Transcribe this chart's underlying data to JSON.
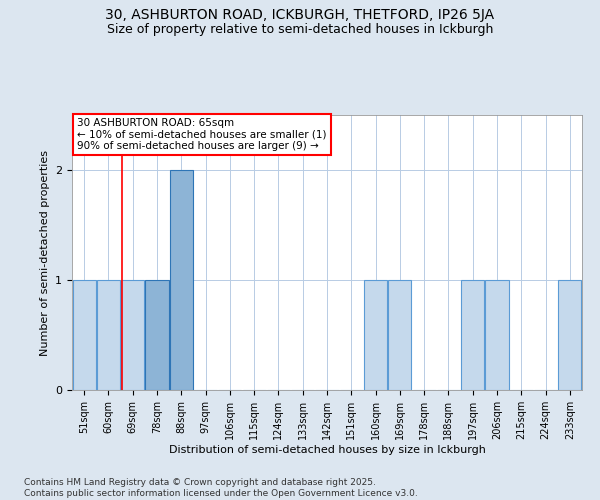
{
  "title1": "30, ASHBURTON ROAD, ICKBURGH, THETFORD, IP26 5JA",
  "title2": "Size of property relative to semi-detached houses in Ickburgh",
  "xlabel": "Distribution of semi-detached houses by size in Ickburgh",
  "ylabel": "Number of semi-detached properties",
  "categories": [
    "51sqm",
    "60sqm",
    "69sqm",
    "78sqm",
    "88sqm",
    "97sqm",
    "106sqm",
    "115sqm",
    "124sqm",
    "133sqm",
    "142sqm",
    "151sqm",
    "160sqm",
    "169sqm",
    "178sqm",
    "188sqm",
    "197sqm",
    "206sqm",
    "215sqm",
    "224sqm",
    "233sqm"
  ],
  "values": [
    1,
    1,
    1,
    1,
    2,
    0,
    0,
    0,
    0,
    0,
    0,
    0,
    1,
    1,
    0,
    0,
    1,
    1,
    0,
    0,
    1
  ],
  "highlight_indices": [
    3,
    4
  ],
  "bar_color": "#c5d9ec",
  "bar_edge_color": "#5b9bd5",
  "highlight_color": "#8db4d6",
  "highlight_edge_color": "#2e75b6",
  "red_line_x": 1.55,
  "annotation_text": "30 ASHBURTON ROAD: 65sqm\n← 10% of semi-detached houses are smaller (1)\n90% of semi-detached houses are larger (9) →",
  "ylim": [
    0,
    2.5
  ],
  "yticks": [
    0,
    1,
    2
  ],
  "footnote": "Contains HM Land Registry data © Crown copyright and database right 2025.\nContains public sector information licensed under the Open Government Licence v3.0.",
  "background_color": "#dce6f0",
  "plot_bg_color": "#ffffff",
  "grid_color": "#b8cce4",
  "title_fontsize": 10,
  "subtitle_fontsize": 9,
  "axis_label_fontsize": 8,
  "tick_fontsize": 7,
  "footnote_fontsize": 6.5,
  "annotation_fontsize": 7.5
}
